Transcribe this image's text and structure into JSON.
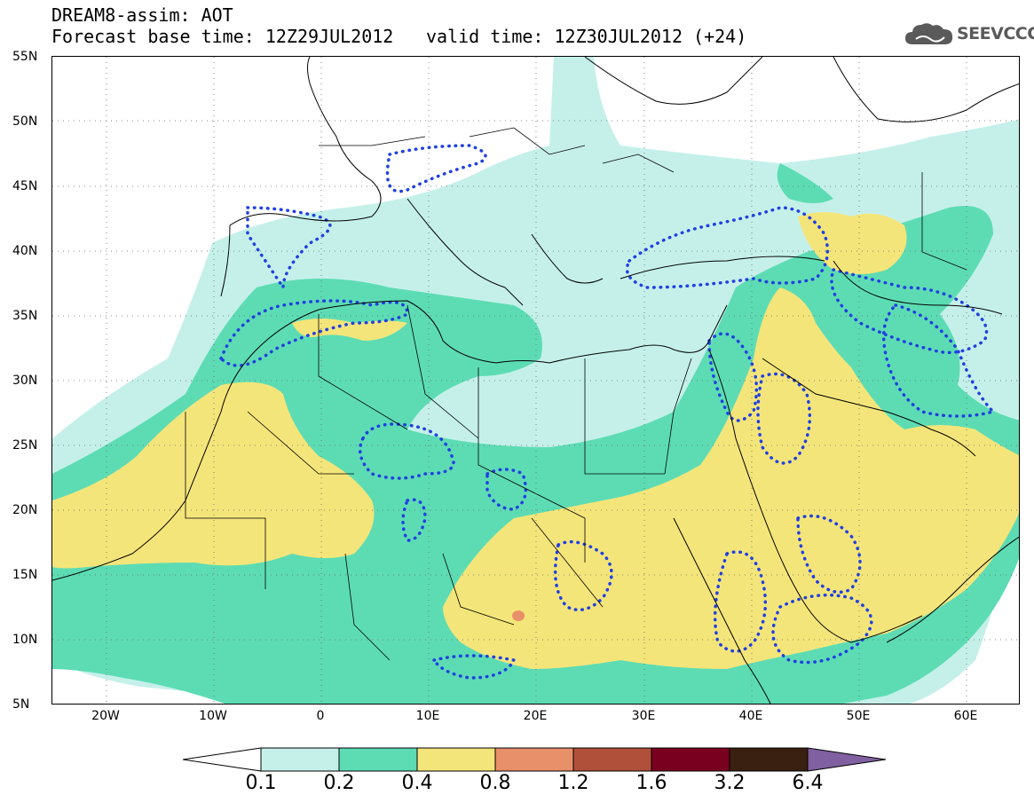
{
  "title": {
    "line1": "DREAM8-assim: AOT",
    "base_time": "Forecast base time: 12Z29JUL2012",
    "valid_time": "valid time: 12Z30JUL2012 (+24)"
  },
  "logo": {
    "text": "SEEVCCC",
    "icon": "cloud-icon"
  },
  "map": {
    "lat_labels": [
      "55N",
      "50N",
      "45N",
      "40N",
      "35N",
      "30N",
      "25N",
      "20N",
      "15N",
      "10N",
      "5N"
    ],
    "lon_labels": [
      "20W",
      "10W",
      "0",
      "10E",
      "20E",
      "30E",
      "40E",
      "50E",
      "60E"
    ],
    "lon_range": [
      -25,
      65
    ],
    "lat_range": [
      5,
      55
    ],
    "grid": true
  },
  "colorbar": {
    "levels": [
      "0.1",
      "0.2",
      "0.4",
      "0.8",
      "1.2",
      "1.6",
      "3.2",
      "6.4"
    ],
    "colors": [
      "#c5f0ea",
      "#5ddcb4",
      "#f4e57a",
      "#e8906a",
      "#b0503a",
      "#7a0020",
      "#3a2010",
      "#8060a0"
    ]
  }
}
